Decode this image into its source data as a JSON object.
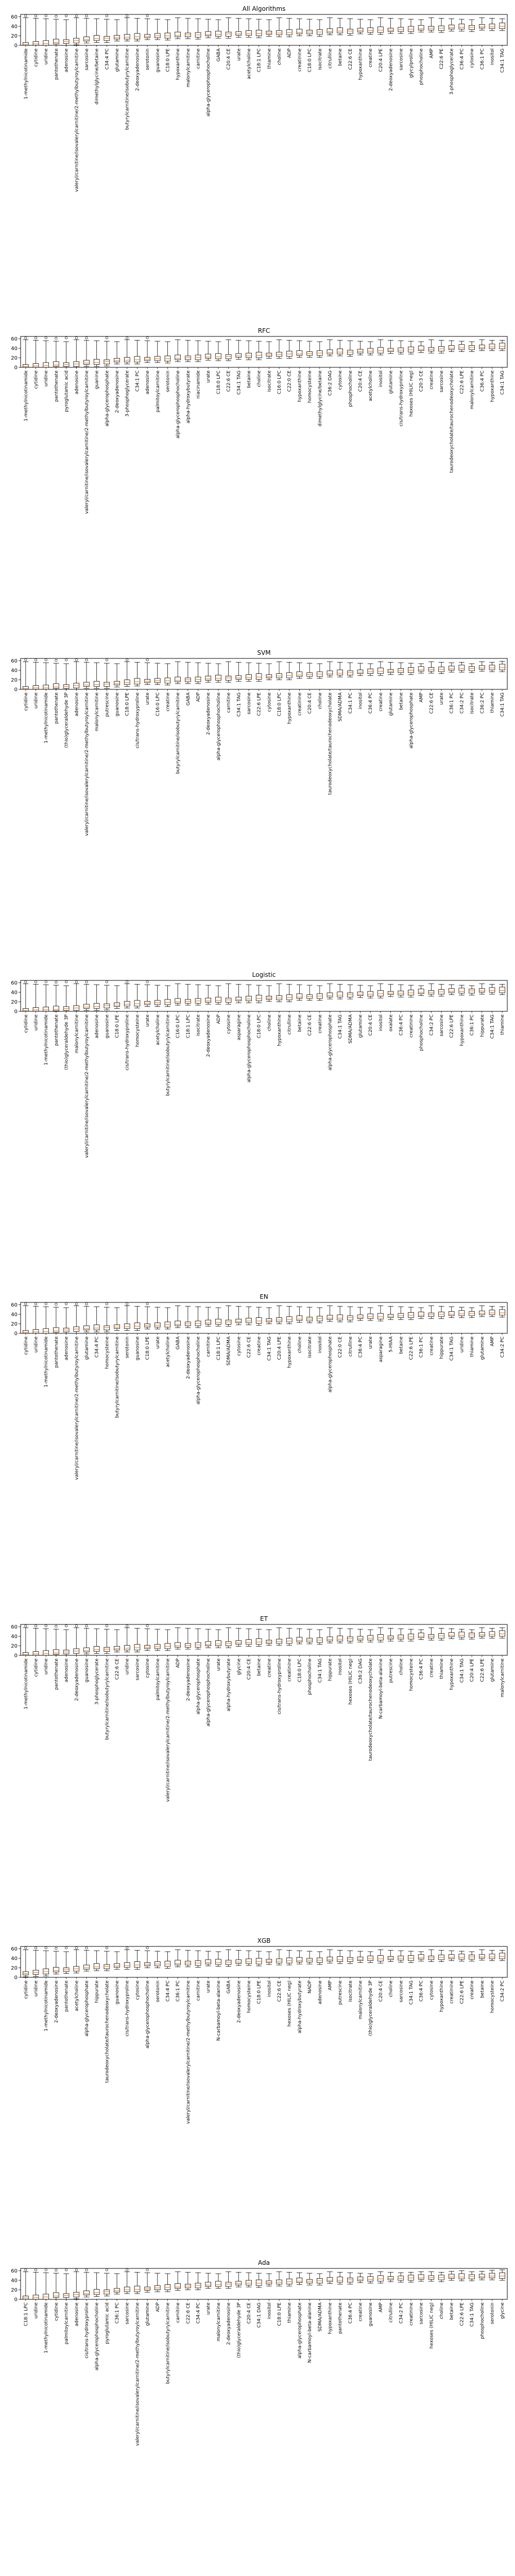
{
  "chart_data": [
    {
      "type": "box",
      "title": "All Algorithms",
      "xlabel": "",
      "ylabel": "",
      "ylim": [
        0,
        65
      ],
      "yticks": [
        0,
        20,
        40,
        60
      ],
      "grid": false,
      "categories": [
        "1-methylnicotinamide",
        "cytidine",
        "uridine",
        "pantothenate",
        "adenosine",
        "valeryl/carnitine/isovalerylcarnitine/2-methylbutyroylcarnitine",
        "sarcosine",
        "dimethylglycine/betaine",
        "C34:4 PC",
        "glutamine",
        "butyrylcarnitine/isobutyrylcarnitine",
        "2-deoxyadenosine",
        "serotonin",
        "guanosine",
        "C18:0 LPE",
        "hypoxanthine",
        "malonylcarnitine",
        "carnitine",
        "alpha-glycerophosphocholine",
        "GABA",
        "C20:4 CE",
        "urate",
        "acetylcholine",
        "C18:1 LPC",
        "thiamine",
        "choline",
        "ADP",
        "creatinine",
        "C18:0 LPC",
        "isocitrate",
        "citrulline",
        "betaine",
        "C22:6 CE",
        "hypoxanthine",
        "creatine",
        "C20:4 LPE",
        "2-deoxyadenosine",
        "sarcosine",
        "glycylproline",
        "phosphocholine",
        "AMP",
        "C22:6 PE",
        "3-phosphoglycerate",
        "C36:4 PC",
        "cytosine",
        "C36:1 PC",
        "inositol",
        "C34:1 TAG"
      ],
      "medians": [
        2,
        3,
        4,
        6,
        8,
        10,
        12,
        14,
        15,
        16,
        17,
        18,
        19,
        20,
        20,
        21,
        22,
        22,
        23,
        23,
        24,
        24,
        25,
        25,
        26,
        26,
        27,
        27,
        28,
        28,
        29,
        30,
        30,
        31,
        31,
        32,
        32,
        33,
        34,
        35,
        36,
        36,
        37,
        38,
        38,
        39,
        39,
        40
      ]
    },
    {
      "type": "box",
      "title": "RFC",
      "xlabel": "",
      "ylabel": "",
      "ylim": [
        0,
        65
      ],
      "yticks": [
        0,
        20,
        40,
        60
      ],
      "grid": false,
      "categories": [
        "1-methylnicotinamide",
        "cytidine",
        "uridine",
        "pantothenate",
        "pyroglutamic acid",
        "adenosine",
        "valeryl/carnitine/isovalerylcarnitine/2-methylbutyroylcarnitine",
        "guanine",
        "alpha-glycerophosphate",
        "2-deoxyadenosine",
        "3-phosphoglycerate",
        "C34:1 PC",
        "adenosine",
        "palmitoylcarnitine",
        "serotonin",
        "alpha-glycerophosphocholine",
        "alpha-hydroxybutyrate",
        "niacinamide",
        "urate",
        "C18:0 LPC",
        "C22:6 CE",
        "C34:1 TAG",
        "betaine",
        "choline",
        "isocitrate",
        "C16:0 LPC",
        "C22:0 CE",
        "hypoxanthine",
        "homocysteine",
        "dimethylglycine/betaine",
        "C36:2 DAG",
        "cytosine",
        "phosphocholine",
        "C20:4 CE",
        "acetylcholine",
        "inositol",
        "glutamine",
        "cis/trans-hydroxyproline",
        "hexoses (HILIC neg)",
        "C20:3 CE",
        "creatine",
        "sarcosine",
        "taurodeoxycholate/taurochenodeoxycholate",
        "C22:6 LPE",
        "malonylcarnitine",
        "C36:4 PC",
        "hypoxanthine",
        "C34:1 TAG"
      ],
      "medians": [
        2,
        3,
        4,
        5,
        6,
        7,
        9,
        10,
        12,
        14,
        15,
        16,
        17,
        18,
        18,
        19,
        20,
        21,
        22,
        22,
        23,
        24,
        24,
        25,
        26,
        27,
        28,
        28,
        29,
        30,
        31,
        32,
        32,
        33,
        34,
        35,
        36,
        36,
        37,
        38,
        38,
        39,
        40,
        41,
        42,
        42,
        43,
        44
      ]
    },
    {
      "type": "box",
      "title": "SVM",
      "xlabel": "",
      "ylabel": "",
      "ylim": [
        0,
        65
      ],
      "yticks": [
        0,
        20,
        40,
        60
      ],
      "grid": false,
      "categories": [
        "cytidine",
        "uridine",
        "1-methylnicotinamide",
        "pantothenate",
        "(thio)glyceraldehyde 3P",
        "adenosine",
        "valeryl/carnitine/isovalerylcarnitine/2-methylbutyroylcarnitine",
        "malonylcarnitine",
        "putrescine",
        "guanosine",
        "C18:0 LPE",
        "cis/trans-hydroxyproline",
        "urate",
        "C16:0 LPC",
        "creatine",
        "butyrylcarnitine/isobutyrylcarnitine",
        "GABA",
        "ADP",
        "2-deoxyadenosine",
        "alpha-glycerophosphocholine",
        "carnitine",
        "C34:1 TAG",
        "sarcosine",
        "C22:6 LPE",
        "cytosine",
        "C18:0 LPC",
        "hypoxanthine",
        "creatinine",
        "C20:4 CE",
        "choline",
        "taurodeoxycholate/taurochenodeoxycholate",
        "SDMA/ADMA",
        "C34:1 PC",
        "inositol",
        "C36:4 PC",
        "creatine",
        "glutamine",
        "betaine",
        "alpha-glycerophosphate",
        "AMP",
        "C22:6 CE",
        "urate",
        "C36:1 PC",
        "C34:2 PC",
        "isocitrate",
        "C36:2 PC",
        "thiamine",
        "C34:1 TAG"
      ],
      "medians": [
        2,
        3,
        3,
        5,
        6,
        8,
        9,
        10,
        11,
        12,
        14,
        16,
        17,
        18,
        18,
        19,
        20,
        21,
        22,
        23,
        24,
        24,
        25,
        26,
        27,
        28,
        29,
        30,
        31,
        32,
        33,
        34,
        35,
        36,
        37,
        38,
        38,
        39,
        40,
        41,
        42,
        42,
        43,
        44,
        44,
        45,
        45,
        46
      ]
    },
    {
      "type": "box",
      "title": "Logistic",
      "xlabel": "",
      "ylabel": "",
      "ylim": [
        0,
        65
      ],
      "yticks": [
        0,
        20,
        40,
        60
      ],
      "grid": false,
      "categories": [
        "cytidine",
        "uridine",
        "1-methylnicotinamide",
        "pantothenate",
        "(thio)glyceraldehyde 3P",
        "malonylcarnitine",
        "valeryl/carnitine/isovalerylcarnitine/2-methylbutyroylcarnitine",
        "adenosine",
        "guanosine",
        "C18:0 LPE",
        "cis/trans-hydroxyproline",
        "homocysteine",
        "urate",
        "acetylcholine",
        "butyrylcarnitine/isobutyrylcarnitine",
        "C16:0 LPC",
        "C18:1 LPC",
        "isocitrate",
        "2-deoxyadenosine",
        "ADP",
        "cytosine",
        "asparagine",
        "alpha-glycerophosphocholine",
        "C18:0 LPC",
        "choline",
        "hypoxanthine",
        "citrulline",
        "betaine",
        "C22:6 CE",
        "creatine",
        "alpha-glycerophosphate",
        "C34:1 TAG",
        "SDMA/ADMA",
        "glutamine",
        "C20:4 CE",
        "inositol",
        "oxalate",
        "C36:4 PC",
        "creatinine",
        "phosphocholine",
        "C34:2 PC",
        "sarcosine",
        "C22:6 LPE",
        "hypoxanthine",
        "C36:1 PC",
        "hippurate",
        "C34:1 TAG",
        "thiamine"
      ],
      "medians": [
        2,
        3,
        3,
        4,
        6,
        7,
        9,
        10,
        12,
        13,
        15,
        16,
        17,
        18,
        19,
        20,
        21,
        22,
        22,
        23,
        24,
        25,
        26,
        27,
        28,
        28,
        29,
        30,
        31,
        32,
        33,
        34,
        35,
        36,
        36,
        37,
        38,
        38,
        39,
        40,
        40,
        41,
        42,
        42,
        43,
        43,
        44,
        44
      ]
    },
    {
      "type": "box",
      "title": "EN",
      "xlabel": "",
      "ylabel": "",
      "ylim": [
        0,
        65
      ],
      "yticks": [
        0,
        20,
        40,
        60
      ],
      "grid": false,
      "categories": [
        "cytidine",
        "uridine",
        "1-methylnicotinamide",
        "pantothenate",
        "adenosine",
        "valeryl/carnitine/isovalerylcarnitine/2-methylbutyroylcarnitine",
        "glutamine",
        "C34:4 PC",
        "homocysteine",
        "butyrylcarnitine/isobutyrylcarnitine",
        "serotonin",
        "guanosine",
        "C18:0 LPE",
        "urate",
        "acetylcholine",
        "GABA",
        "2-deoxyadenosine",
        "alpha-glycerophosphocholine",
        "carnitine",
        "C18:1 LPC",
        "SDMA/ADMA",
        "cytosine",
        "C22:6 CE",
        "creatine",
        "C34:1 TAG",
        "C20:4 LPE",
        "hypoxanthine",
        "choline",
        "isocitrate",
        "inositol",
        "alpha-glycerophosphate",
        "C22:0 CE",
        "citrulline",
        "C36:4 PC",
        "urate",
        "asparagine",
        "5-HIAA",
        "betaine",
        "C22:6 LPE",
        "C36:1 PC",
        "creatine",
        "hippurate",
        "C34:1 TAG",
        "uridine",
        "thiamine",
        "glutamine",
        "AMP",
        "C34:2 PC"
      ],
      "medians": [
        2,
        3,
        4,
        5,
        7,
        9,
        10,
        11,
        12,
        13,
        14,
        15,
        16,
        17,
        18,
        19,
        20,
        21,
        22,
        23,
        24,
        25,
        26,
        26,
        27,
        28,
        29,
        30,
        30,
        31,
        32,
        32,
        33,
        34,
        35,
        35,
        36,
        37,
        38,
        38,
        39,
        40,
        40,
        41,
        42,
        42,
        43,
        43
      ]
    },
    {
      "type": "box",
      "title": "ET",
      "xlabel": "",
      "ylabel": "",
      "ylim": [
        0,
        65
      ],
      "yticks": [
        0,
        20,
        40,
        60
      ],
      "grid": false,
      "categories": [
        "1-methylnicotinamide",
        "cytidine",
        "uridine",
        "pantothenate",
        "adenosine",
        "2-deoxyadenosine",
        "guanosine",
        "3-phosphoglycerate",
        "butyrylcarnitine/isobutyrylcarnitine",
        "C22:6 CE",
        "uridine",
        "sarcosine",
        "cytosine",
        "palmitoylcarnitine",
        "valeryl/carnitine/isovalerylcarnitine/2-methylbutyroylcarnitine",
        "ADP",
        "2-deoxyadenosine",
        "alpha-glycerophosphate",
        "alpha-glycerophosphocholine",
        "urate",
        "alpha-hydroxybutyrate",
        "glycine",
        "C20:4 CE",
        "betaine",
        "creatine",
        "cis/trans-hydroxyproline",
        "creatinine",
        "C18:0 LPC",
        "phosphocholine",
        "C34:1 TAG",
        "hippurate",
        "inositol",
        "hexoses (HILIC neg)",
        "C36:2 DAG",
        "taurodeoxycholate/taurochenodeoxycholate",
        "N-carbamoyl-beta-alanine",
        "putrescine",
        "choline",
        "homocysteine",
        "C36:4 PC",
        "creatine",
        "thiamine",
        "hypoxanthine",
        "C34:1 TAG",
        "C20:4 LPE",
        "C22:6 LPE",
        "glutamine",
        "malonylcarnitine"
      ],
      "medians": [
        2,
        3,
        4,
        5,
        7,
        9,
        10,
        12,
        13,
        14,
        15,
        16,
        17,
        18,
        19,
        20,
        21,
        22,
        23,
        24,
        25,
        26,
        27,
        28,
        28,
        29,
        30,
        31,
        32,
        32,
        33,
        34,
        35,
        35,
        36,
        37,
        37,
        38,
        39,
        40,
        40,
        41,
        42,
        42,
        43,
        43,
        44,
        45
      ]
    },
    {
      "type": "box",
      "title": "XGB",
      "xlabel": "",
      "ylabel": "",
      "ylim": [
        0,
        65
      ],
      "yticks": [
        0,
        20,
        40,
        60
      ],
      "grid": false,
      "categories": [
        "cytidine",
        "uridine",
        "1-methylnicotinamide",
        "2-deoxyadenosine",
        "pantothenate",
        "acetylcholine",
        "alpha-glycerophosphate",
        "hippurate",
        "taurodeoxycholate/taurochenodeoxycholate",
        "guanosine",
        "cis/trans-hydroxyproline",
        "cytosine",
        "alpha-glycerophosphocholine",
        "serotonin",
        "C34:4 PC",
        "C36:1 PC",
        "valeryl/carnitine/isovalerylcarnitine/2-methylbutyroylcarnitine",
        "carnitine",
        "urate",
        "N-carbamoyl-beta-alanine",
        "GABA",
        "2-deoxyadenosine",
        "homocysteine",
        "C18:0 LPE",
        "inositol",
        "C22:6 CE",
        "hexoses (HILIC neg)",
        "alpha-hydroxybutyrate",
        "NADP",
        "adenosine",
        "AMP",
        "putrescine",
        "isocitrate",
        "malonylcarnitine",
        "(thio)glyceraldehyde 3P",
        "C20:4 CE",
        "choline",
        "sarcosine",
        "C34:1 TAG",
        "C36:4 PC",
        "cytosine",
        "hypoxanthine",
        "creatinine",
        "C22:6 LPE",
        "creatine",
        "betaine",
        "homocysteine",
        "C34:2 PC"
      ],
      "medians": [
        8,
        10,
        12,
        14,
        16,
        18,
        20,
        22,
        23,
        24,
        25,
        26,
        27,
        28,
        28,
        29,
        30,
        30,
        31,
        31,
        32,
        32,
        33,
        33,
        34,
        34,
        35,
        35,
        36,
        36,
        37,
        37,
        38,
        38,
        39,
        39,
        40,
        40,
        40,
        41,
        41,
        42,
        42,
        42,
        43,
        43,
        43,
        44
      ]
    },
    {
      "type": "box",
      "title": "Ada",
      "xlabel": "",
      "ylabel": "",
      "ylim": [
        0,
        65
      ],
      "yticks": [
        0,
        20,
        40,
        60
      ],
      "grid": false,
      "categories": [
        "C18:1 LPC",
        "uridine",
        "1-methylnicotinamide",
        "cytidine",
        "palmitoylcarnitine",
        "adenosine",
        "cis/trans-hydroxyproline",
        "alpha-glycerophosphocholine",
        "pyroglutamic acid",
        "C36:1 PC",
        "sarcosine",
        "valeryl/carnitine/isovalerylcarnitine/2-methylbutyroylcarnitine",
        "glutamine",
        "ADP",
        "butyrylcarnitine/isobutyrylcarnitine",
        "carnitine",
        "C22:6 CE",
        "C34:4 PC",
        "urate",
        "malonylcarnitine",
        "2-deoxyadenosine",
        "(thio)glyceraldehyde 3P",
        "C20:4 CE",
        "C34:1 DAG",
        "inositol",
        "C18:0 LPE",
        "thiamine",
        "alpha-glycerophosphate",
        "N-carbamoyl-beta-alanine",
        "SDMA/ADMA",
        "hypoxanthine",
        "pantothenate",
        "C36:4 PC",
        "creatine",
        "guanosine",
        "AMP",
        "citrulline",
        "C34:2 PC",
        "creatinine",
        "sarcosine",
        "hexoses (HILIC neg)",
        "choline",
        "betaine",
        "C22:6 LPE",
        "C34:1 TAG",
        "phosphocholine",
        "serotonin",
        "glycine"
      ],
      "medians": [
        3,
        4,
        5,
        7,
        8,
        10,
        12,
        14,
        16,
        18,
        20,
        21,
        22,
        24,
        25,
        26,
        28,
        29,
        30,
        31,
        32,
        33,
        34,
        34,
        35,
        36,
        37,
        38,
        38,
        39,
        40,
        40,
        41,
        42,
        42,
        43,
        44,
        44,
        45,
        45,
        46,
        46,
        47,
        47,
        48,
        48,
        49,
        49
      ]
    }
  ]
}
